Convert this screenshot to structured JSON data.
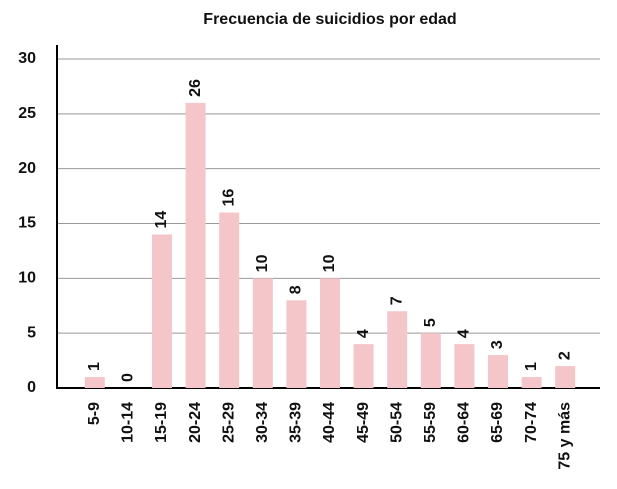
{
  "chart_data": {
    "type": "bar",
    "title": "Frecuencia de suicidios por edad",
    "categories": [
      "5-9",
      "10-14",
      "15-19",
      "20-24",
      "25-29",
      "30-34",
      "35-39",
      "40-44",
      "45-49",
      "50-54",
      "55-59",
      "60-64",
      "65-69",
      "70-74",
      "75 y más"
    ],
    "values": [
      1,
      0,
      14,
      26,
      16,
      10,
      8,
      10,
      4,
      7,
      5,
      4,
      3,
      1,
      2
    ],
    "color": "#f4c6c9",
    "ylim": [
      0,
      30
    ],
    "yticks": [
      0,
      5,
      10,
      15,
      20,
      25,
      30
    ],
    "grid": true
  }
}
